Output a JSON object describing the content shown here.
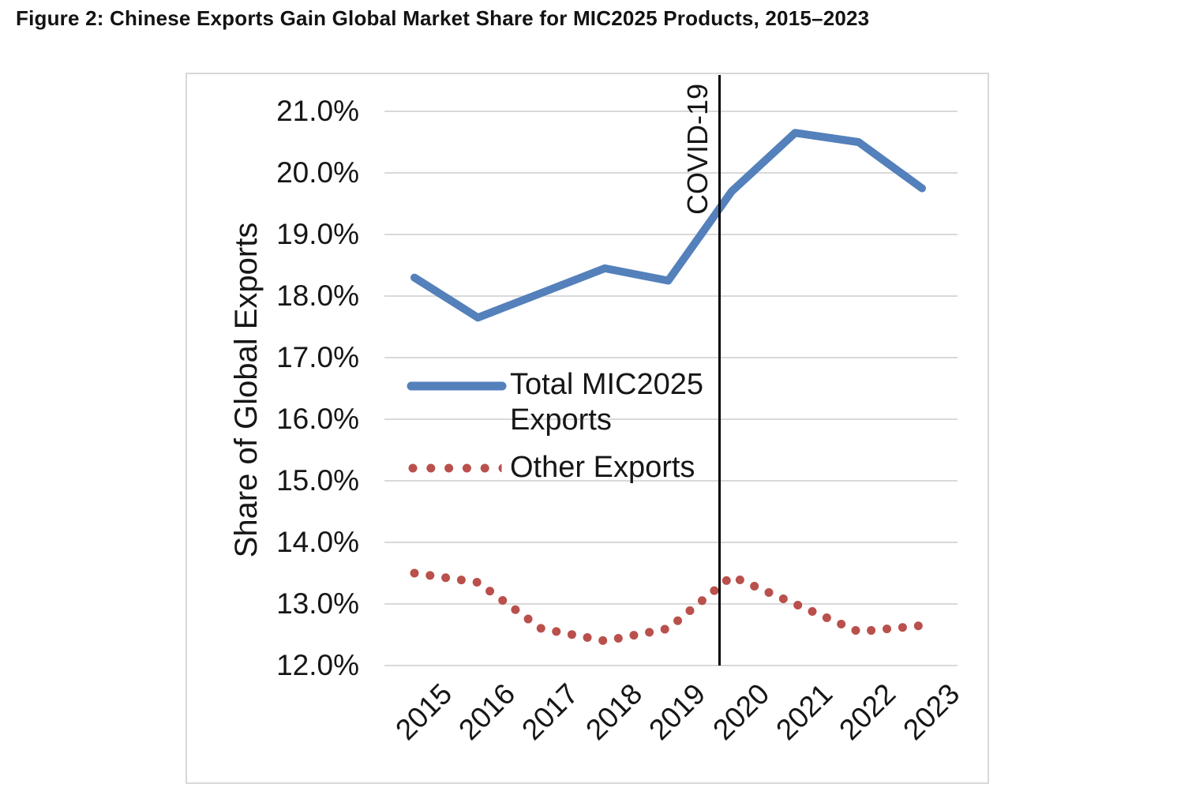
{
  "figure_title": "Figure 2: Chinese Exports Gain Global Market Share for MIC2025 Products, 2015–2023",
  "chart_data": {
    "type": "line",
    "title": "Figure 2: Chinese Exports Gain Global Market Share for MIC2025 Products, 2015–2023",
    "xlabel": "",
    "ylabel": "Share of Global Exports",
    "categories": [
      "2015",
      "2016",
      "2017",
      "2018",
      "2019",
      "2020",
      "2021",
      "2022",
      "2023"
    ],
    "y_ticks": [
      "21.0%",
      "20.0%",
      "19.0%",
      "18.0%",
      "17.0%",
      "16.0%",
      "15.0%",
      "14.0%",
      "13.0%",
      "12.0%"
    ],
    "ylim": [
      12.0,
      21.0
    ],
    "grid": true,
    "legend_position": "inside-center-left",
    "series": [
      {
        "name": "Total MIC2025 Exports",
        "style": "solid",
        "color": "#5480BB",
        "values": [
          18.3,
          17.65,
          18.05,
          18.45,
          18.25,
          19.7,
          20.65,
          20.5,
          19.75
        ]
      },
      {
        "name": "Other Exports",
        "style": "dotted",
        "color": "#B9504C",
        "values": [
          13.5,
          13.35,
          12.6,
          12.4,
          12.6,
          13.45,
          13.0,
          12.55,
          12.65
        ]
      }
    ],
    "annotations": [
      {
        "type": "vline",
        "at_category": "2020",
        "label": "COVID-19",
        "color": "#000000"
      }
    ],
    "colors": {
      "gridline": "#d9d9d9",
      "frame_border": "#d8d8d8",
      "text": "#161616",
      "background": "#ffffff"
    }
  }
}
